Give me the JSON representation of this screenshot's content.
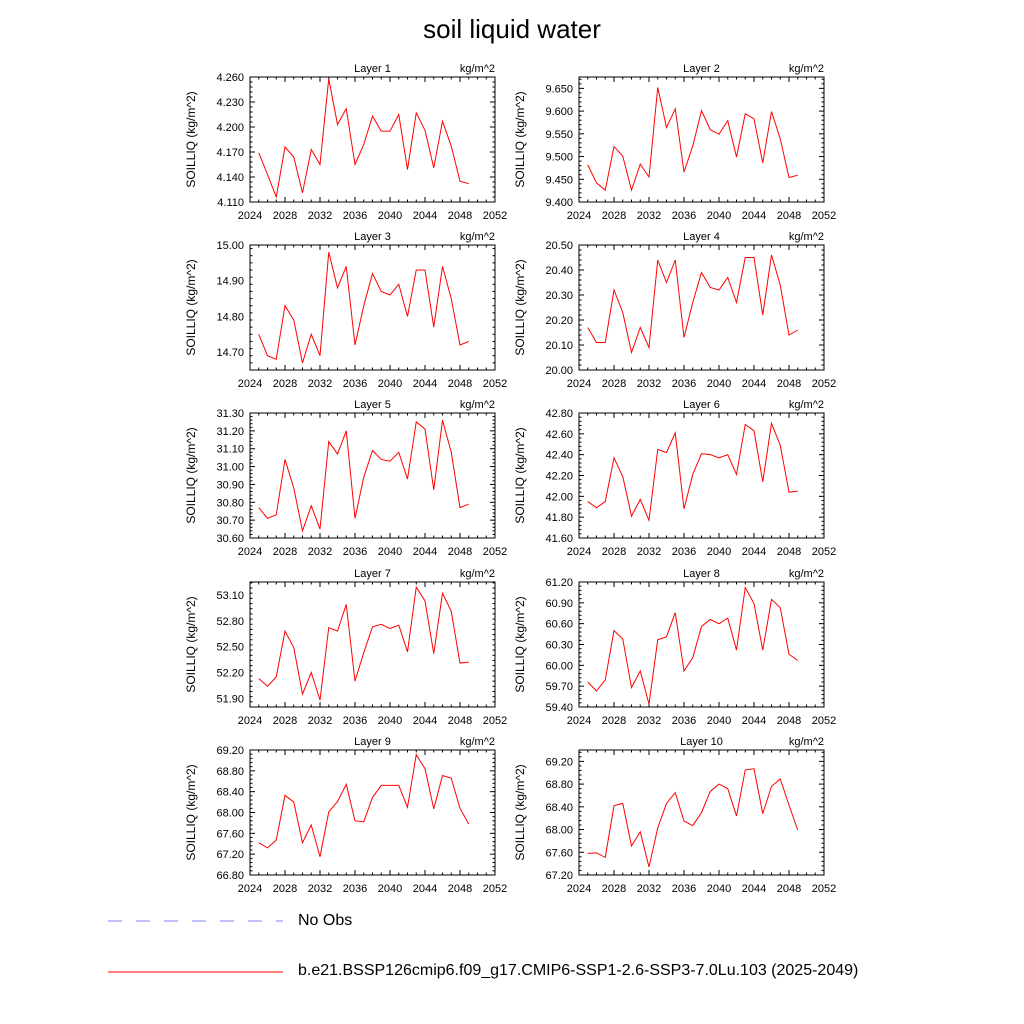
{
  "title": "soil liquid water",
  "colors": {
    "model_line": "#ff0000",
    "obs_line": "#8080ff"
  },
  "legend": {
    "obs_label": "No Obs",
    "model_label": "b.e21.BSSP126cmip6.f09_g17.CMIP6-SSP1-2.6-SSP3-7.0Lu.103 (2025-2049)"
  },
  "chart_data": [
    {
      "type": "line",
      "title": "Layer 1",
      "units": "kg/m^2",
      "ylabel": "SOILLIQ  (kg/m^2)",
      "xlim": [
        2024,
        2052
      ],
      "xticks": [
        2024,
        2028,
        2032,
        2036,
        2040,
        2044,
        2048,
        2052
      ],
      "ylim": [
        4.11,
        4.26
      ],
      "yticks": [
        "4.110",
        "4.140",
        "4.170",
        "4.200",
        "4.230",
        "4.260"
      ],
      "x": [
        2025,
        2026,
        2027,
        2028,
        2029,
        2030,
        2031,
        2032,
        2033,
        2034,
        2035,
        2036,
        2037,
        2038,
        2039,
        2040,
        2041,
        2042,
        2043,
        2044,
        2045,
        2046,
        2047,
        2048,
        2049
      ],
      "series": [
        {
          "values": [
            4.169,
            4.143,
            4.116,
            4.176,
            4.164,
            4.121,
            4.173,
            4.155,
            4.258,
            4.203,
            4.222,
            4.155,
            4.179,
            4.213,
            4.195,
            4.195,
            4.215,
            4.149,
            4.217,
            4.196,
            4.151,
            4.207,
            4.177,
            4.135,
            4.132
          ]
        }
      ]
    },
    {
      "type": "line",
      "title": "Layer 2",
      "units": "kg/m^2",
      "ylabel": "SOILLIQ  (kg/m^2)",
      "xlim": [
        2024,
        2052
      ],
      "xticks": [
        2024,
        2028,
        2032,
        2036,
        2040,
        2044,
        2048,
        2052
      ],
      "ylim": [
        9.4,
        9.675
      ],
      "yticks": [
        "9.400",
        "9.450",
        "9.500",
        "9.550",
        "9.600",
        "9.650"
      ],
      "x": [
        2025,
        2026,
        2027,
        2028,
        2029,
        2030,
        2031,
        2032,
        2033,
        2034,
        2035,
        2036,
        2037,
        2038,
        2039,
        2040,
        2041,
        2042,
        2043,
        2044,
        2045,
        2046,
        2047,
        2048,
        2049
      ],
      "series": [
        {
          "values": [
            9.482,
            9.442,
            9.426,
            9.522,
            9.501,
            9.426,
            9.483,
            9.455,
            9.652,
            9.564,
            9.605,
            9.466,
            9.523,
            9.601,
            9.559,
            9.549,
            9.579,
            9.499,
            9.594,
            9.583,
            9.486,
            9.599,
            9.539,
            9.454,
            9.459
          ]
        }
      ]
    },
    {
      "type": "line",
      "title": "Layer 3",
      "units": "kg/m^2",
      "ylabel": "SOILLIQ  (kg/m^2)",
      "xlim": [
        2024,
        2052
      ],
      "xticks": [
        2024,
        2028,
        2032,
        2036,
        2040,
        2044,
        2048,
        2052
      ],
      "ylim": [
        14.65,
        15.0
      ],
      "yticks": [
        "14.70",
        "14.80",
        "14.90",
        "15.00"
      ],
      "x": [
        2025,
        2026,
        2027,
        2028,
        2029,
        2030,
        2031,
        2032,
        2033,
        2034,
        2035,
        2036,
        2037,
        2038,
        2039,
        2040,
        2041,
        2042,
        2043,
        2044,
        2045,
        2046,
        2047,
        2048,
        2049
      ],
      "series": [
        {
          "values": [
            14.75,
            14.69,
            14.68,
            14.83,
            14.79,
            14.67,
            14.75,
            14.69,
            14.98,
            14.88,
            14.94,
            14.72,
            14.83,
            14.92,
            14.87,
            14.86,
            14.89,
            14.8,
            14.93,
            14.93,
            14.77,
            14.94,
            14.85,
            14.72,
            14.73
          ]
        }
      ]
    },
    {
      "type": "line",
      "title": "Layer 4",
      "units": "kg/m^2",
      "ylabel": "SOILLIQ  (kg/m^2)",
      "xlim": [
        2024,
        2052
      ],
      "xticks": [
        2024,
        2028,
        2032,
        2036,
        2040,
        2044,
        2048,
        2052
      ],
      "ylim": [
        20.0,
        20.5
      ],
      "yticks": [
        "20.00",
        "20.10",
        "20.20",
        "20.30",
        "20.40",
        "20.50"
      ],
      "x": [
        2025,
        2026,
        2027,
        2028,
        2029,
        2030,
        2031,
        2032,
        2033,
        2034,
        2035,
        2036,
        2037,
        2038,
        2039,
        2040,
        2041,
        2042,
        2043,
        2044,
        2045,
        2046,
        2047,
        2048,
        2049
      ],
      "series": [
        {
          "values": [
            20.17,
            20.11,
            20.11,
            20.32,
            20.23,
            20.07,
            20.17,
            20.09,
            20.44,
            20.35,
            20.44,
            20.13,
            20.27,
            20.39,
            20.33,
            20.32,
            20.37,
            20.27,
            20.45,
            20.45,
            20.22,
            20.46,
            20.34,
            20.14,
            20.16
          ]
        }
      ]
    },
    {
      "type": "line",
      "title": "Layer 5",
      "units": "kg/m^2",
      "ylabel": "SOILLIQ  (kg/m^2)",
      "xlim": [
        2024,
        2052
      ],
      "xticks": [
        2024,
        2028,
        2032,
        2036,
        2040,
        2044,
        2048,
        2052
      ],
      "ylim": [
        30.6,
        31.3
      ],
      "yticks": [
        "30.60",
        "30.70",
        "30.80",
        "30.90",
        "31.00",
        "31.10",
        "31.20",
        "31.30"
      ],
      "x": [
        2025,
        2026,
        2027,
        2028,
        2029,
        2030,
        2031,
        2032,
        2033,
        2034,
        2035,
        2036,
        2037,
        2038,
        2039,
        2040,
        2041,
        2042,
        2043,
        2044,
        2045,
        2046,
        2047,
        2048,
        2049
      ],
      "series": [
        {
          "values": [
            30.77,
            30.71,
            30.73,
            31.04,
            30.88,
            30.64,
            30.78,
            30.65,
            31.14,
            31.07,
            31.2,
            30.71,
            30.94,
            31.09,
            31.04,
            31.03,
            31.08,
            30.93,
            31.25,
            31.21,
            30.87,
            31.26,
            31.08,
            30.77,
            30.79
          ]
        }
      ]
    },
    {
      "type": "line",
      "title": "Layer 6",
      "units": "kg/m^2",
      "ylabel": "SOILLIQ  (kg/m^2)",
      "xlim": [
        2024,
        2052
      ],
      "xticks": [
        2024,
        2028,
        2032,
        2036,
        2040,
        2044,
        2048,
        2052
      ],
      "ylim": [
        41.6,
        42.8
      ],
      "yticks": [
        "41.60",
        "41.80",
        "42.00",
        "42.20",
        "42.40",
        "42.60",
        "42.80"
      ],
      "x": [
        2025,
        2026,
        2027,
        2028,
        2029,
        2030,
        2031,
        2032,
        2033,
        2034,
        2035,
        2036,
        2037,
        2038,
        2039,
        2040,
        2041,
        2042,
        2043,
        2044,
        2045,
        2046,
        2047,
        2048,
        2049
      ],
      "series": [
        {
          "values": [
            41.95,
            41.89,
            41.95,
            42.37,
            42.19,
            41.81,
            41.97,
            41.77,
            42.45,
            42.42,
            42.61,
            41.88,
            42.21,
            42.41,
            42.4,
            42.37,
            42.4,
            42.21,
            42.69,
            42.63,
            42.14,
            42.7,
            42.49,
            42.04,
            42.05
          ]
        }
      ]
    },
    {
      "type": "line",
      "title": "Layer 7",
      "units": "kg/m^2",
      "ylabel": "SOILLIQ  (kg/m^2)",
      "xlim": [
        2024,
        2052
      ],
      "xticks": [
        2024,
        2028,
        2032,
        2036,
        2040,
        2044,
        2048,
        2052
      ],
      "ylim": [
        51.8,
        53.25
      ],
      "yticks": [
        "51.90",
        "52.20",
        "52.50",
        "52.80",
        "53.10"
      ],
      "x": [
        2025,
        2026,
        2027,
        2028,
        2029,
        2030,
        2031,
        2032,
        2033,
        2034,
        2035,
        2036,
        2037,
        2038,
        2039,
        2040,
        2041,
        2042,
        2043,
        2044,
        2045,
        2046,
        2047,
        2048,
        2049
      ],
      "series": [
        {
          "values": [
            52.13,
            52.04,
            52.15,
            52.68,
            52.49,
            51.95,
            52.2,
            51.88,
            52.72,
            52.68,
            52.99,
            52.1,
            52.43,
            52.73,
            52.76,
            52.71,
            52.75,
            52.44,
            53.19,
            53.03,
            52.42,
            53.12,
            52.91,
            52.31,
            52.32
          ]
        }
      ]
    },
    {
      "type": "line",
      "title": "Layer 8",
      "units": "kg/m^2",
      "ylabel": "SOILLIQ  (kg/m^2)",
      "xlim": [
        2024,
        2052
      ],
      "xticks": [
        2024,
        2028,
        2032,
        2036,
        2040,
        2044,
        2048,
        2052
      ],
      "ylim": [
        59.4,
        61.2
      ],
      "yticks": [
        "59.40",
        "59.70",
        "60.00",
        "60.30",
        "60.60",
        "60.90",
        "61.20"
      ],
      "x": [
        2025,
        2026,
        2027,
        2028,
        2029,
        2030,
        2031,
        2032,
        2033,
        2034,
        2035,
        2036,
        2037,
        2038,
        2039,
        2040,
        2041,
        2042,
        2043,
        2044,
        2045,
        2046,
        2047,
        2048,
        2049
      ],
      "series": [
        {
          "values": [
            59.76,
            59.63,
            59.79,
            60.5,
            60.38,
            59.68,
            59.92,
            59.44,
            60.37,
            60.41,
            60.76,
            59.92,
            60.11,
            60.56,
            60.66,
            60.6,
            60.68,
            60.22,
            61.12,
            60.89,
            60.22,
            60.95,
            60.83,
            60.16,
            60.07
          ]
        }
      ]
    },
    {
      "type": "line",
      "title": "Layer 9",
      "units": "kg/m^2",
      "ylabel": "SOILLIQ  (kg/m^2)",
      "xlim": [
        2024,
        2052
      ],
      "xticks": [
        2024,
        2028,
        2032,
        2036,
        2040,
        2044,
        2048,
        2052
      ],
      "ylim": [
        66.8,
        69.2
      ],
      "yticks": [
        "66.80",
        "67.20",
        "67.60",
        "68.00",
        "68.40",
        "68.80",
        "69.20"
      ],
      "x": [
        2025,
        2026,
        2027,
        2028,
        2029,
        2030,
        2031,
        2032,
        2033,
        2034,
        2035,
        2036,
        2037,
        2038,
        2039,
        2040,
        2041,
        2042,
        2043,
        2044,
        2045,
        2046,
        2047,
        2048,
        2049
      ],
      "series": [
        {
          "values": [
            67.42,
            67.32,
            67.47,
            68.33,
            68.2,
            67.42,
            67.76,
            67.15,
            68.01,
            68.21,
            68.54,
            67.84,
            67.82,
            68.29,
            68.52,
            68.52,
            68.52,
            68.1,
            69.11,
            68.84,
            68.07,
            68.71,
            68.66,
            68.08,
            67.78
          ]
        }
      ]
    },
    {
      "type": "line",
      "title": "Layer 10",
      "units": "kg/m^2",
      "ylabel": "SOILLIQ  (kg/m^2)",
      "xlim": [
        2024,
        2052
      ],
      "xticks": [
        2024,
        2028,
        2032,
        2036,
        2040,
        2044,
        2048,
        2052
      ],
      "ylim": [
        67.2,
        69.4
      ],
      "yticks": [
        "67.20",
        "67.60",
        "68.00",
        "68.40",
        "68.80",
        "69.20"
      ],
      "x": [
        2025,
        2026,
        2027,
        2028,
        2029,
        2030,
        2031,
        2032,
        2033,
        2034,
        2035,
        2036,
        2037,
        2038,
        2039,
        2040,
        2041,
        2042,
        2043,
        2044,
        2045,
        2046,
        2047,
        2048,
        2049
      ],
      "series": [
        {
          "values": [
            67.58,
            67.59,
            67.51,
            68.42,
            68.46,
            67.71,
            67.96,
            67.34,
            68.03,
            68.46,
            68.65,
            68.15,
            68.07,
            68.3,
            68.67,
            68.8,
            68.72,
            68.24,
            69.05,
            69.07,
            68.28,
            68.76,
            68.89,
            68.43,
            67.99
          ]
        }
      ]
    }
  ]
}
